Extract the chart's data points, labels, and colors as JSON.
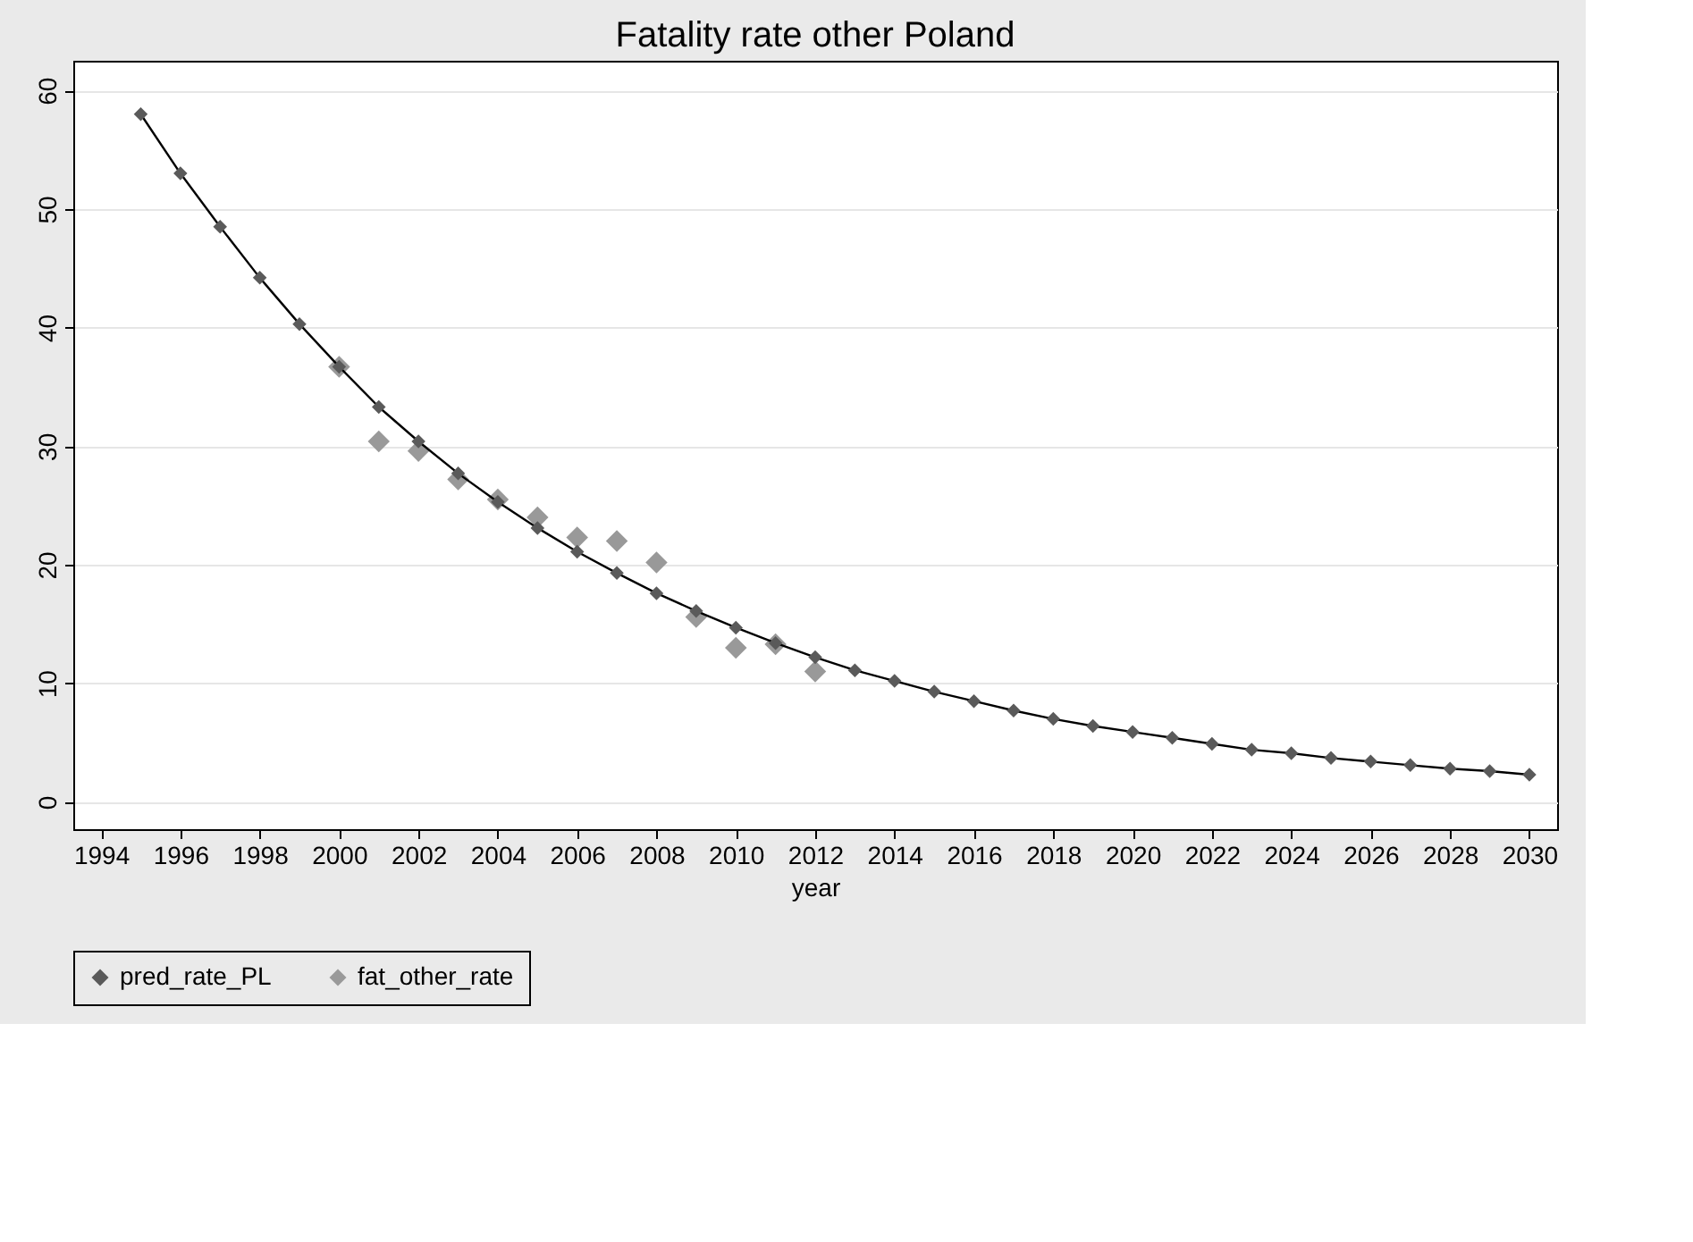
{
  "chart_data": {
    "type": "line",
    "title": "Fatality rate other Poland",
    "xlabel": "year",
    "xlim": [
      1993.3,
      2030.7
    ],
    "xticks": [
      1994,
      1996,
      1998,
      2000,
      2002,
      2004,
      2006,
      2008,
      2010,
      2012,
      2014,
      2016,
      2018,
      2020,
      2022,
      2024,
      2026,
      2028,
      2030
    ],
    "ylim": [
      -2.3,
      62.5
    ],
    "yticks": [
      0,
      10,
      20,
      30,
      40,
      50,
      60
    ],
    "grid": "y",
    "legend": "bottom",
    "marker": "diamond",
    "series": [
      {
        "name": "pred_rate_PL",
        "color": "#5a5a5a",
        "x": [
          1995,
          1996,
          1997,
          1998,
          1999,
          2000,
          2001,
          2002,
          2003,
          2004,
          2005,
          2006,
          2007,
          2008,
          2009,
          2010,
          2011,
          2012,
          2013,
          2014,
          2015,
          2016,
          2017,
          2018,
          2019,
          2020,
          2021,
          2022,
          2023,
          2024,
          2025,
          2026,
          2027,
          2028,
          2029,
          2030
        ],
        "values": [
          58,
          53,
          48.5,
          44.2,
          40.3,
          36.7,
          33.3,
          30.4,
          27.7,
          25.3,
          23.1,
          21.1,
          19.3,
          17.6,
          16.1,
          14.7,
          13.4,
          12.2,
          11.1,
          10.2,
          9.3,
          8.5,
          7.7,
          7.0,
          6.4,
          5.9,
          5.4,
          4.9,
          4.4,
          4.1,
          3.7,
          3.4,
          3.1,
          2.8,
          2.6,
          2.3
        ]
      },
      {
        "name": "fat_other_rate",
        "type": "scatter",
        "color": "#999999",
        "x": [
          2000,
          2001,
          2002,
          2003,
          2004,
          2005,
          2006,
          2007,
          2008,
          2009,
          2010,
          2011,
          2012
        ],
        "values": [
          36.7,
          30.4,
          29.6,
          27.2,
          25.5,
          24.0,
          22.3,
          22.0,
          20.2,
          15.6,
          13.0,
          13.3,
          11.0
        ]
      }
    ]
  }
}
